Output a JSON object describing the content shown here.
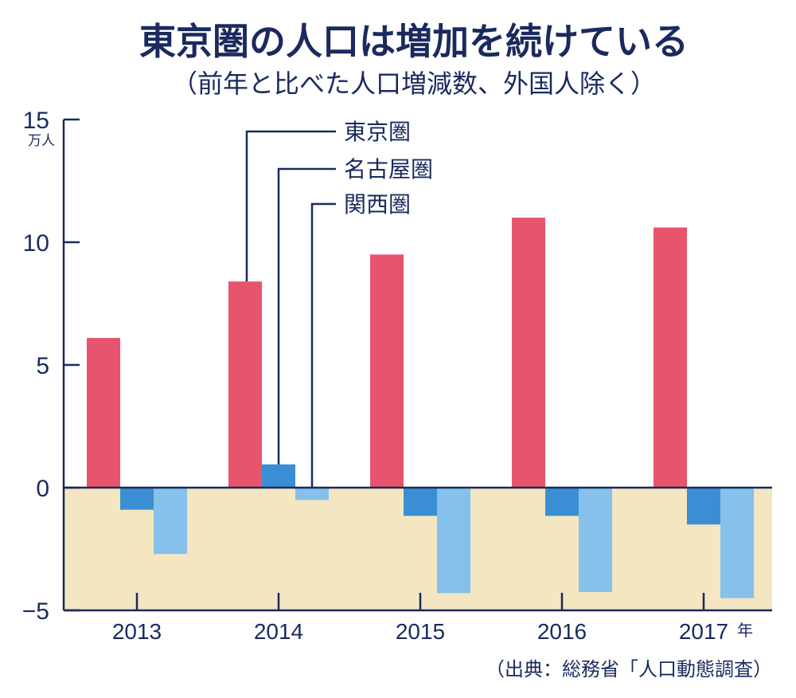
{
  "colors": {
    "tokyo": "#e8536d",
    "nagoya": "#3a8fd4",
    "kansai": "#85c1ea",
    "negative_bg": "#f3e6c0",
    "ink": "#1a2a5e"
  },
  "chart_data": {
    "type": "bar",
    "title": "東京圏の人口は増加を続けている",
    "subtitle": "（前年と比べた人口増減数、外国人除く）",
    "y_unit": "万人",
    "x_unit": "年",
    "ylim": [
      -5,
      15
    ],
    "yticks": [
      "15",
      "10",
      "5",
      "0",
      "−5"
    ],
    "categories": [
      "2013",
      "2014",
      "2015",
      "2016",
      "2017"
    ],
    "series": [
      {
        "name": "東京圏",
        "values": [
          6.1,
          8.4,
          9.5,
          11.0,
          10.6
        ]
      },
      {
        "name": "名古屋圏",
        "values": [
          -0.9,
          0.95,
          -1.15,
          -1.15,
          -1.5
        ]
      },
      {
        "name": "関西圏",
        "values": [
          -2.7,
          -0.5,
          -4.3,
          -4.25,
          -4.5
        ]
      }
    ],
    "legend_placement": "callout-top",
    "source": "（出典：総務省「人口動態調査）"
  }
}
